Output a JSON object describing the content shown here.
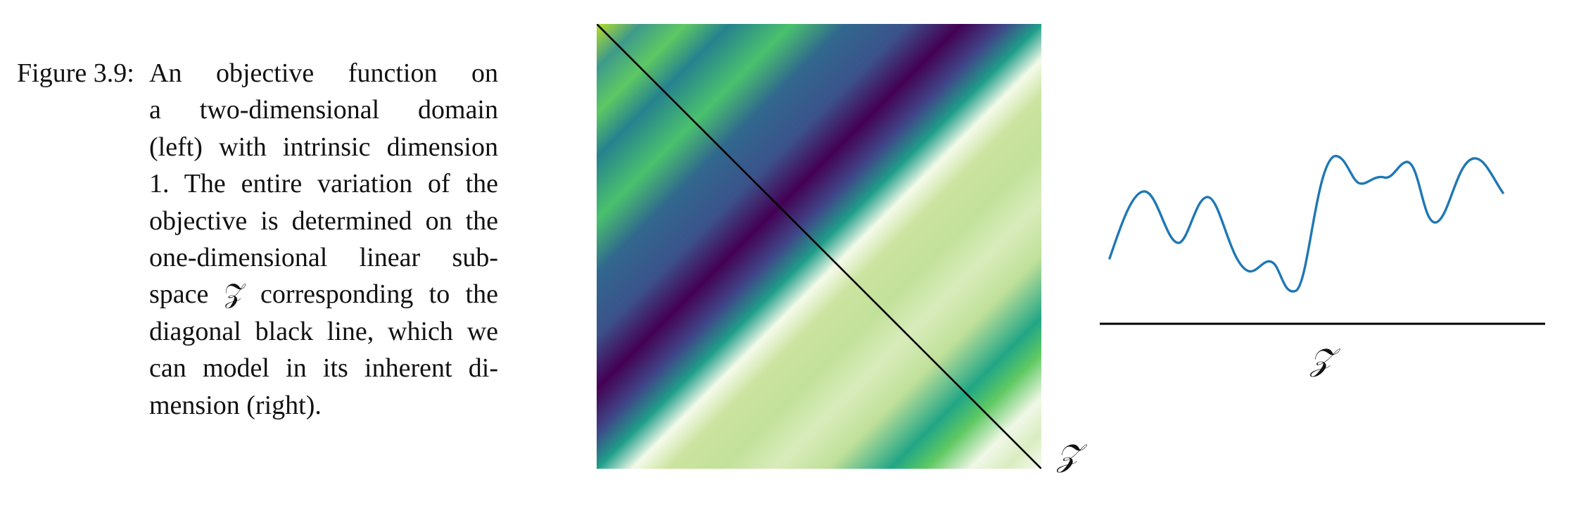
{
  "caption": {
    "label": "Figure 3.9:",
    "lines": [
      "An objective function on",
      "a two-dimensional domain",
      "(left) with intrinsic dimension",
      "1. The entire variation of the",
      "objective is determined on the",
      "one-dimensional linear sub-",
      "space 𝒵 corresponding to the",
      "diagonal black line, which we",
      "can model in its inherent di-",
      "mension (right)."
    ]
  },
  "left_panel": {
    "colormap": "viridis",
    "subspace_line": "diagonal, top-left to bottom-right",
    "line_color": "#000000",
    "corner_label": "𝒵"
  },
  "right_panel": {
    "curve_color": "#1f77b4",
    "axis_color": "#000000",
    "axis_label": "𝒵"
  }
}
